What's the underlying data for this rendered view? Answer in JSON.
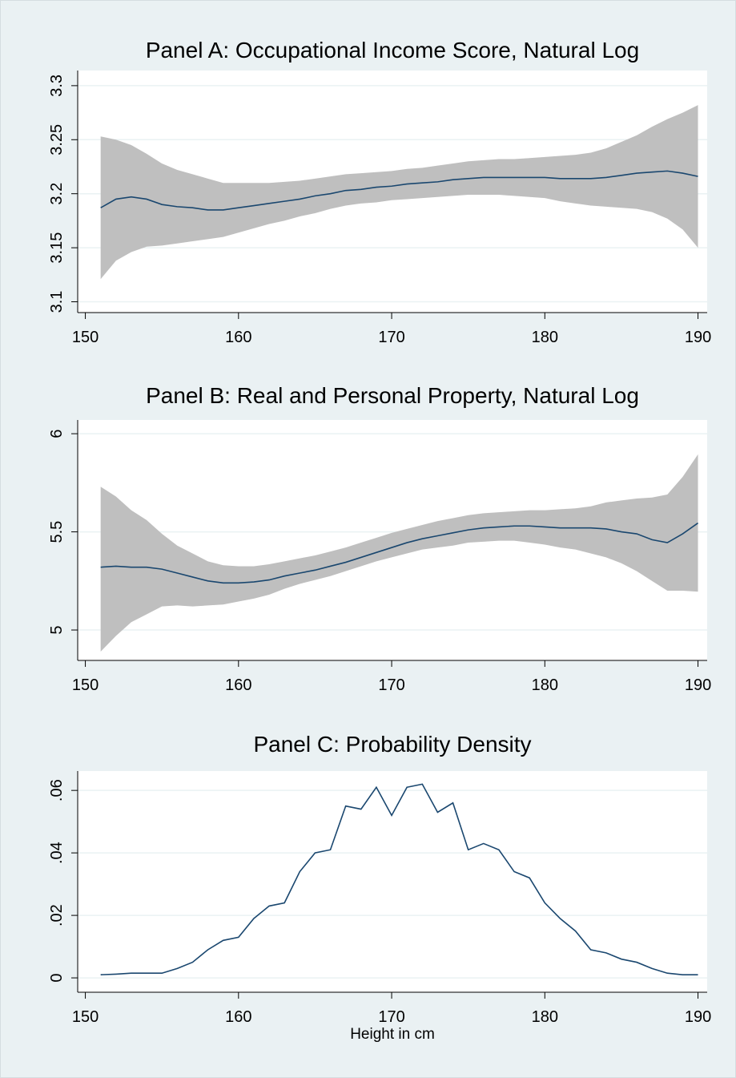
{
  "chart_data": [
    {
      "type": "line",
      "title": "Panel A: Occupational Income Score, Natural Log",
      "x": [
        151,
        152,
        153,
        154,
        155,
        156,
        157,
        158,
        159,
        160,
        161,
        162,
        163,
        164,
        165,
        166,
        167,
        168,
        169,
        170,
        171,
        172,
        173,
        174,
        175,
        176,
        177,
        178,
        179,
        180,
        181,
        182,
        183,
        184,
        185,
        186,
        187,
        188,
        189,
        190
      ],
      "values": [
        3.187,
        3.195,
        3.197,
        3.195,
        3.19,
        3.188,
        3.187,
        3.185,
        3.185,
        3.187,
        3.189,
        3.191,
        3.193,
        3.195,
        3.198,
        3.2,
        3.203,
        3.204,
        3.206,
        3.207,
        3.209,
        3.21,
        3.211,
        3.213,
        3.214,
        3.215,
        3.215,
        3.215,
        3.215,
        3.215,
        3.214,
        3.214,
        3.214,
        3.215,
        3.217,
        3.219,
        3.22,
        3.221,
        3.219,
        3.216
      ],
      "upper": [
        3.253,
        3.25,
        3.245,
        3.237,
        3.228,
        3.222,
        3.218,
        3.214,
        3.21,
        3.21,
        3.21,
        3.21,
        3.211,
        3.212,
        3.214,
        3.216,
        3.218,
        3.219,
        3.22,
        3.221,
        3.223,
        3.224,
        3.226,
        3.228,
        3.23,
        3.231,
        3.232,
        3.232,
        3.233,
        3.234,
        3.235,
        3.236,
        3.238,
        3.242,
        3.248,
        3.254,
        3.262,
        3.269,
        3.275,
        3.282
      ],
      "lower": [
        3.121,
        3.138,
        3.146,
        3.151,
        3.152,
        3.154,
        3.156,
        3.158,
        3.16,
        3.164,
        3.168,
        3.172,
        3.175,
        3.179,
        3.182,
        3.186,
        3.189,
        3.191,
        3.192,
        3.194,
        3.195,
        3.196,
        3.197,
        3.198,
        3.199,
        3.199,
        3.199,
        3.198,
        3.197,
        3.196,
        3.193,
        3.191,
        3.189,
        3.188,
        3.187,
        3.186,
        3.183,
        3.177,
        3.167,
        3.15
      ],
      "color": "#1a476f",
      "band_color": "#bfbfbf",
      "xlim": [
        149.5,
        190.6
      ],
      "xticks": [
        150,
        160,
        170,
        180,
        190
      ],
      "ylim": [
        3.09,
        3.314
      ],
      "yticks": [
        3.1,
        3.15,
        3.2,
        3.25,
        3.3
      ],
      "grid": true
    },
    {
      "type": "line",
      "title": "Panel B: Real and Personal Property, Natural Log",
      "x": [
        151,
        152,
        153,
        154,
        155,
        156,
        157,
        158,
        159,
        160,
        161,
        162,
        163,
        164,
        165,
        166,
        167,
        168,
        169,
        170,
        171,
        172,
        173,
        174,
        175,
        176,
        177,
        178,
        179,
        180,
        181,
        182,
        183,
        184,
        185,
        186,
        187,
        188,
        189,
        190
      ],
      "values": [
        5.32,
        5.325,
        5.32,
        5.32,
        5.31,
        5.29,
        5.27,
        5.25,
        5.24,
        5.24,
        5.245,
        5.255,
        5.275,
        5.29,
        5.305,
        5.325,
        5.345,
        5.37,
        5.395,
        5.42,
        5.445,
        5.465,
        5.48,
        5.495,
        5.51,
        5.52,
        5.525,
        5.53,
        5.53,
        5.525,
        5.52,
        5.52,
        5.52,
        5.515,
        5.5,
        5.49,
        5.46,
        5.445,
        5.49,
        5.545
      ],
      "upper": [
        5.73,
        5.68,
        5.61,
        5.56,
        5.49,
        5.43,
        5.39,
        5.35,
        5.33,
        5.325,
        5.325,
        5.335,
        5.35,
        5.365,
        5.38,
        5.4,
        5.42,
        5.445,
        5.47,
        5.495,
        5.515,
        5.535,
        5.555,
        5.57,
        5.585,
        5.595,
        5.6,
        5.605,
        5.61,
        5.61,
        5.615,
        5.62,
        5.63,
        5.65,
        5.66,
        5.67,
        5.675,
        5.69,
        5.78,
        5.895
      ],
      "lower": [
        4.89,
        4.97,
        5.04,
        5.08,
        5.12,
        5.125,
        5.12,
        5.125,
        5.13,
        5.145,
        5.16,
        5.18,
        5.21,
        5.235,
        5.255,
        5.275,
        5.3,
        5.325,
        5.35,
        5.37,
        5.39,
        5.41,
        5.42,
        5.43,
        5.445,
        5.45,
        5.455,
        5.455,
        5.445,
        5.435,
        5.42,
        5.41,
        5.39,
        5.37,
        5.34,
        5.3,
        5.25,
        5.2,
        5.2,
        5.195
      ],
      "color": "#1a476f",
      "band_color": "#bfbfbf",
      "xlim": [
        149.5,
        190.6
      ],
      "xticks": [
        150,
        160,
        170,
        180,
        190
      ],
      "ylim": [
        4.845,
        6.07
      ],
      "yticks": [
        5,
        5.5,
        6
      ],
      "grid": true
    },
    {
      "type": "line",
      "title": "Panel C: Probability Density",
      "x_label": "Height in cm",
      "x": [
        151,
        152,
        153,
        154,
        155,
        156,
        157,
        158,
        159,
        160,
        161,
        162,
        163,
        164,
        165,
        166,
        167,
        168,
        169,
        170,
        171,
        172,
        173,
        174,
        175,
        176,
        177,
        178,
        179,
        180,
        181,
        182,
        183,
        184,
        185,
        186,
        187,
        188,
        189,
        190
      ],
      "values": [
        0.001,
        0.0012,
        0.0015,
        0.0015,
        0.0015,
        0.003,
        0.005,
        0.009,
        0.012,
        0.013,
        0.019,
        0.023,
        0.024,
        0.034,
        0.04,
        0.041,
        0.055,
        0.054,
        0.061,
        0.052,
        0.061,
        0.062,
        0.053,
        0.056,
        0.041,
        0.043,
        0.041,
        0.034,
        0.032,
        0.024,
        0.019,
        0.015,
        0.009,
        0.008,
        0.006,
        0.005,
        0.003,
        0.0015,
        0.001,
        0.001
      ],
      "color": "#1a476f",
      "xlim": [
        149.5,
        190.6
      ],
      "xticks": [
        150,
        160,
        170,
        180,
        190
      ],
      "ylim": [
        -0.0046,
        0.0662
      ],
      "yticks": [
        {
          "value": 0,
          "label": "0"
        },
        {
          "value": 0.02,
          "label": ".02"
        },
        {
          "value": 0.04,
          "label": ".04"
        },
        {
          "value": 0.06,
          "label": ".06"
        }
      ],
      "grid": true
    }
  ]
}
